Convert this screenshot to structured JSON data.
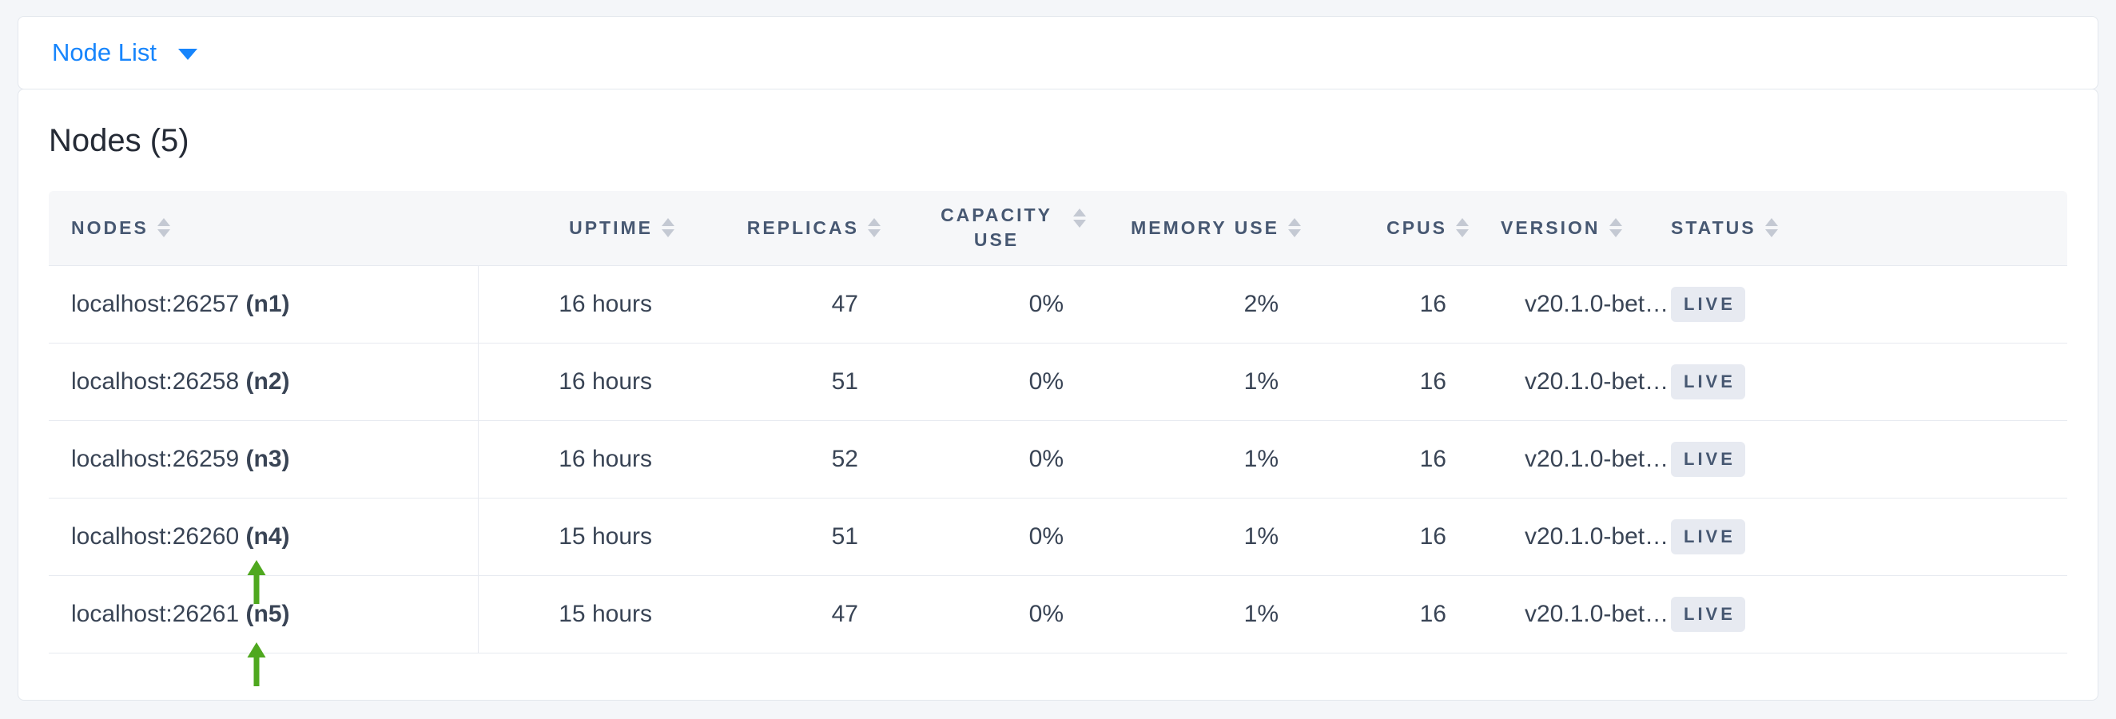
{
  "page": {
    "background": "#f4f6f9",
    "accent_blue": "#1785fc",
    "arrow_green": "#4fa81f",
    "badge_bg": "#e7eaf1",
    "badge_text": "#475872"
  },
  "toolbar": {
    "dropdown_label": "Node List"
  },
  "main": {
    "title": "Nodes (5)",
    "table": {
      "columns": [
        {
          "key": "nodes",
          "label": "NODES",
          "sortable": true
        },
        {
          "key": "uptime",
          "label": "UPTIME",
          "sortable": true
        },
        {
          "key": "replicas",
          "label": "REPLICAS",
          "sortable": true
        },
        {
          "key": "capacity_use",
          "label": "CAPACITY USE",
          "sortable": true
        },
        {
          "key": "memory_use",
          "label": "MEMORY USE",
          "sortable": true
        },
        {
          "key": "cpus",
          "label": "CPUS",
          "sortable": true
        },
        {
          "key": "version",
          "label": "VERSION",
          "sortable": true
        },
        {
          "key": "status",
          "label": "STATUS",
          "sortable": true
        }
      ],
      "rows": [
        {
          "address": "localhost:26257",
          "node_id": "(n1)",
          "uptime": "16 hours",
          "replicas": "47",
          "capacity_use": "0%",
          "memory_use": "2%",
          "cpus": "16",
          "version": "v20.1.0-bet…",
          "status": "LIVE"
        },
        {
          "address": "localhost:26258",
          "node_id": "(n2)",
          "uptime": "16 hours",
          "replicas": "51",
          "capacity_use": "0%",
          "memory_use": "1%",
          "cpus": "16",
          "version": "v20.1.0-bet…",
          "status": "LIVE"
        },
        {
          "address": "localhost:26259",
          "node_id": "(n3)",
          "uptime": "16 hours",
          "replicas": "52",
          "capacity_use": "0%",
          "memory_use": "1%",
          "cpus": "16",
          "version": "v20.1.0-bet…",
          "status": "LIVE"
        },
        {
          "address": "localhost:26260",
          "node_id": "(n4)",
          "uptime": "15 hours",
          "replicas": "51",
          "capacity_use": "0%",
          "memory_use": "1%",
          "cpus": "16",
          "version": "v20.1.0-bet…",
          "status": "LIVE"
        },
        {
          "address": "localhost:26261",
          "node_id": "(n5)",
          "uptime": "15 hours",
          "replicas": "47",
          "capacity_use": "0%",
          "memory_use": "1%",
          "cpus": "16",
          "version": "v20.1.0-bet…",
          "status": "LIVE"
        }
      ]
    },
    "annotations": {
      "arrows": [
        {
          "points_at": "(n4)"
        },
        {
          "points_at": "(n5)"
        }
      ]
    }
  }
}
